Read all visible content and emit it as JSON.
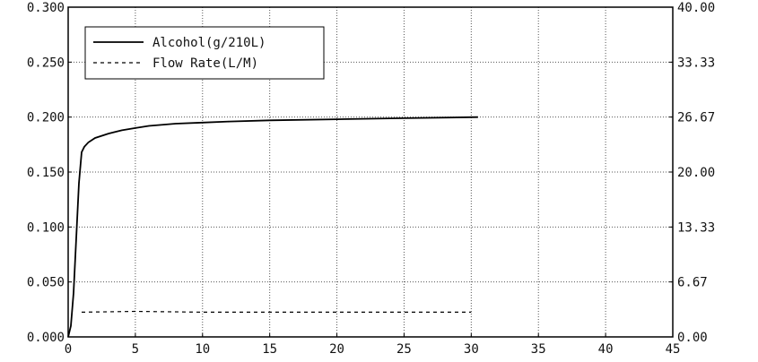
{
  "chart_data": {
    "type": "line",
    "title": "",
    "xlabel": "",
    "ylabel": "",
    "y2label": "",
    "xlim": [
      0,
      45
    ],
    "ylim": [
      0,
      0.3
    ],
    "y2lim": [
      0,
      40
    ],
    "grid": true,
    "legend_position": "top-left",
    "x_ticks": [
      "0",
      "5",
      "10",
      "15",
      "20",
      "25",
      "30",
      "35",
      "40",
      "45"
    ],
    "y_ticks": [
      "0.000",
      "0.050",
      "0.100",
      "0.150",
      "0.200",
      "0.250",
      "0.300"
    ],
    "y2_ticks": [
      "0.00",
      "6.67",
      "13.33",
      "20.00",
      "26.67",
      "33.33",
      "40.00"
    ],
    "series": [
      {
        "name": "Alcohol(g/210L)",
        "axis": "left",
        "style": "solid",
        "color": "#000000",
        "x": [
          0.0,
          0.2,
          0.4,
          0.6,
          0.8,
          1.0,
          1.2,
          1.5,
          2.0,
          3.0,
          4.0,
          5.0,
          6.0,
          8.0,
          10.0,
          12.0,
          15.0,
          20.0,
          25.0,
          30.5
        ],
        "y": [
          0.0,
          0.01,
          0.04,
          0.09,
          0.14,
          0.168,
          0.173,
          0.177,
          0.181,
          0.185,
          0.188,
          0.19,
          0.192,
          0.194,
          0.195,
          0.196,
          0.197,
          0.198,
          0.199,
          0.2
        ]
      },
      {
        "name": "Flow Rate(L/M)",
        "axis": "right",
        "style": "dashed",
        "color": "#000000",
        "x": [
          1.0,
          5.0,
          10.0,
          15.0,
          20.0,
          25.0,
          30.0
        ],
        "y": [
          3.0,
          3.1,
          3.0,
          3.0,
          3.0,
          3.0,
          3.0
        ]
      }
    ]
  }
}
